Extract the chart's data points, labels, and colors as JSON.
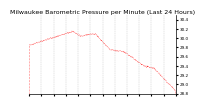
{
  "title": "Milwaukee Barometric Pressure per Minute (Last 24 Hours)",
  "line_color": "#FF0000",
  "background_color": "#FFFFFF",
  "grid_color": "#AAAAAA",
  "y_min": 28.8,
  "y_max": 30.5,
  "y_ticks": [
    28.8,
    29.0,
    29.2,
    29.4,
    29.6,
    29.8,
    30.0,
    30.2,
    30.4
  ],
  "num_points": 1440,
  "title_fontsize": 4.5,
  "tick_fontsize": 3.0
}
